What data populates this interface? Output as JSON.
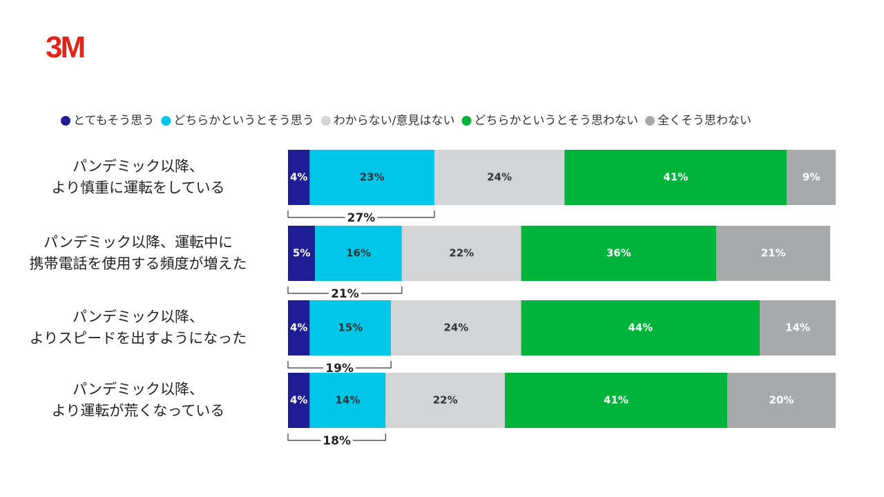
{
  "logo": "3M",
  "chart_data": {
    "type": "stacked-bar-horizontal",
    "categories": [
      "パンデミック以降、\nより慎重に運転をしている",
      "パンデミック以降、運転中に\n携帯電話を使用する頻度が増えた",
      "パンデミック以降、\nよりスピードを出すようになった",
      "パンデミック以降、\nより運転が荒くなっている"
    ],
    "series": [
      {
        "name": "とてもそう思う",
        "color": "#1f1d94",
        "label_color": "#ffffff",
        "values": [
          4,
          5,
          4,
          4
        ],
        "value_labels": [
          "4%",
          "5%",
          "4%",
          "4%"
        ]
      },
      {
        "name": "どちらかというとそう思う",
        "color": "#00c6e8",
        "label_color": "#333333",
        "values": [
          23,
          16,
          15,
          14
        ],
        "value_labels": [
          "23%",
          "16%",
          "15%",
          "14%"
        ]
      },
      {
        "name": "わからない/意見はない",
        "color": "#d3d4d6",
        "label_color": "#333333",
        "values": [
          24,
          22,
          24,
          22
        ],
        "value_labels": [
          "24%",
          "22%",
          "24%",
          "22%"
        ]
      },
      {
        "name": "どちらかというとそう思わない",
        "color": "#00b33b",
        "label_color": "#ffffff",
        "values": [
          41,
          36,
          44,
          41
        ],
        "value_labels": [
          "41%",
          "36%",
          "44%",
          "41%"
        ]
      },
      {
        "name": "全くそう思わない",
        "color": "#a8a9ab",
        "label_color": "#ffffff",
        "values": [
          9,
          21,
          14,
          20
        ],
        "value_labels": [
          "9%",
          "21%",
          "14%",
          "20%"
        ]
      }
    ],
    "totals": {
      "values": [
        27,
        21,
        19,
        18
      ],
      "value_labels": [
        "27%",
        "21%",
        "19%",
        "18%"
      ]
    },
    "xlim": [
      0,
      101
    ]
  }
}
